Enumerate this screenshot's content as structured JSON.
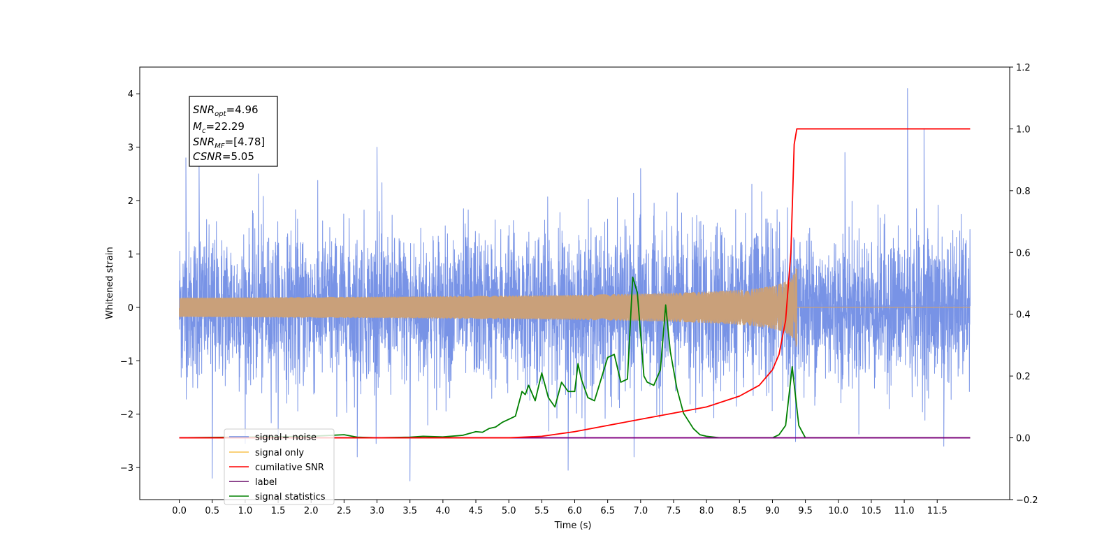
{
  "chart_data": {
    "type": "line",
    "xlabel": "Time (s)",
    "ylabel": "Whitened strain",
    "xlim": [
      -0.6,
      12.6
    ],
    "ylim_left": [
      -3.6,
      4.5
    ],
    "ylim_right": [
      -0.2,
      1.2
    ],
    "x_ticks": [
      "0.0",
      "0.5",
      "1.0",
      "1.5",
      "2.0",
      "2.5",
      "3.0",
      "3.5",
      "4.0",
      "4.5",
      "5.0",
      "5.5",
      "6.0",
      "6.5",
      "7.0",
      "7.5",
      "8.0",
      "8.5",
      "9.0",
      "9.5",
      "10.0",
      "10.5",
      "11.0",
      "11.5"
    ],
    "y_ticks_left": [
      "−3",
      "−2",
      "−1",
      "0",
      "1",
      "2",
      "3",
      "4"
    ],
    "y_ticks_right": [
      "−0.2",
      "0.0",
      "0.2",
      "0.4",
      "0.6",
      "0.8",
      "1.0",
      "1.2"
    ],
    "grid": false,
    "legend_position": "lower-left",
    "annotation": {
      "snr_opt": "=4.96",
      "mc": "=22.29",
      "snr_mf": "=[4.78]",
      "csnr": "=5.05"
    },
    "series": [
      {
        "name": "signal+ noise",
        "axis": "left",
        "color": "#7893e6",
        "description_range": [
          -1.8,
          2.2
        ],
        "spike_points": [
          [
            0.1,
            2.8
          ],
          [
            0.3,
            2.7
          ],
          [
            0.5,
            -3.2
          ],
          [
            1.2,
            2.5
          ],
          [
            2.7,
            -2.8
          ],
          [
            3.5,
            -3.25
          ],
          [
            3.0,
            3.0
          ],
          [
            5.9,
            -3.05
          ],
          [
            6.9,
            -2.8
          ],
          [
            7.0,
            2.6
          ],
          [
            10.1,
            2.9
          ],
          [
            11.05,
            4.1
          ],
          [
            11.3,
            3.35
          ],
          [
            11.6,
            -2.6
          ]
        ],
        "envelope_sigma": 0.9
      },
      {
        "name": "signal only",
        "axis": "left",
        "color": "#f5c14f",
        "chirp_end_time": 9.37,
        "chirp_peak_amplitude": 0.85
      },
      {
        "name": "cumilative SNR",
        "axis": "right",
        "color": "#ff0000",
        "x": [
          0.0,
          5.0,
          5.5,
          6.0,
          6.5,
          7.0,
          7.5,
          8.0,
          8.5,
          8.8,
          9.0,
          9.1,
          9.2,
          9.28,
          9.33,
          9.37,
          9.4,
          12.0
        ],
        "values": [
          0.0,
          0.0,
          0.005,
          0.02,
          0.04,
          0.06,
          0.08,
          0.1,
          0.135,
          0.17,
          0.22,
          0.27,
          0.38,
          0.6,
          0.95,
          1.0,
          1.0,
          1.0
        ]
      },
      {
        "name": "label",
        "axis": "right",
        "color": "#800080",
        "x": [
          0.0,
          12.0
        ],
        "values": [
          0.0,
          0.0
        ]
      },
      {
        "name": "signal statistics",
        "axis": "right",
        "color": "#008000",
        "x": [
          0.0,
          2.0,
          2.5,
          2.7,
          3.0,
          3.5,
          3.7,
          4.0,
          4.3,
          4.5,
          4.6,
          4.7,
          4.8,
          4.9,
          5.0,
          5.1,
          5.2,
          5.25,
          5.3,
          5.4,
          5.5,
          5.6,
          5.7,
          5.8,
          5.9,
          6.0,
          6.05,
          6.1,
          6.2,
          6.3,
          6.4,
          6.5,
          6.6,
          6.7,
          6.8,
          6.88,
          6.95,
          7.05,
          7.1,
          7.2,
          7.3,
          7.38,
          7.45,
          7.55,
          7.65,
          7.8,
          7.9,
          8.0,
          8.2,
          9.0,
          9.1,
          9.2,
          9.3,
          9.4,
          9.5,
          12.0
        ],
        "values": [
          0.0,
          0.005,
          0.01,
          0.002,
          0.0,
          0.002,
          0.005,
          0.003,
          0.008,
          0.02,
          0.018,
          0.03,
          0.035,
          0.05,
          0.06,
          0.07,
          0.15,
          0.14,
          0.17,
          0.12,
          0.21,
          0.13,
          0.1,
          0.18,
          0.15,
          0.15,
          0.24,
          0.19,
          0.13,
          0.12,
          0.19,
          0.26,
          0.27,
          0.18,
          0.19,
          0.52,
          0.47,
          0.2,
          0.18,
          0.17,
          0.22,
          0.43,
          0.28,
          0.16,
          0.08,
          0.03,
          0.01,
          0.005,
          0.0,
          0.0,
          0.01,
          0.04,
          0.23,
          0.04,
          0.0,
          0.0
        ]
      }
    ]
  },
  "legend": {
    "items": [
      {
        "label": "signal+ noise",
        "color": "#6f8be0"
      },
      {
        "label": "signal only",
        "color": "#f9c24e"
      },
      {
        "label": "cumilative SNR",
        "color": "#ff0000"
      },
      {
        "label": "label",
        "color": "#6a0d6a"
      },
      {
        "label": "signal statistics",
        "color": "#008000"
      }
    ]
  }
}
